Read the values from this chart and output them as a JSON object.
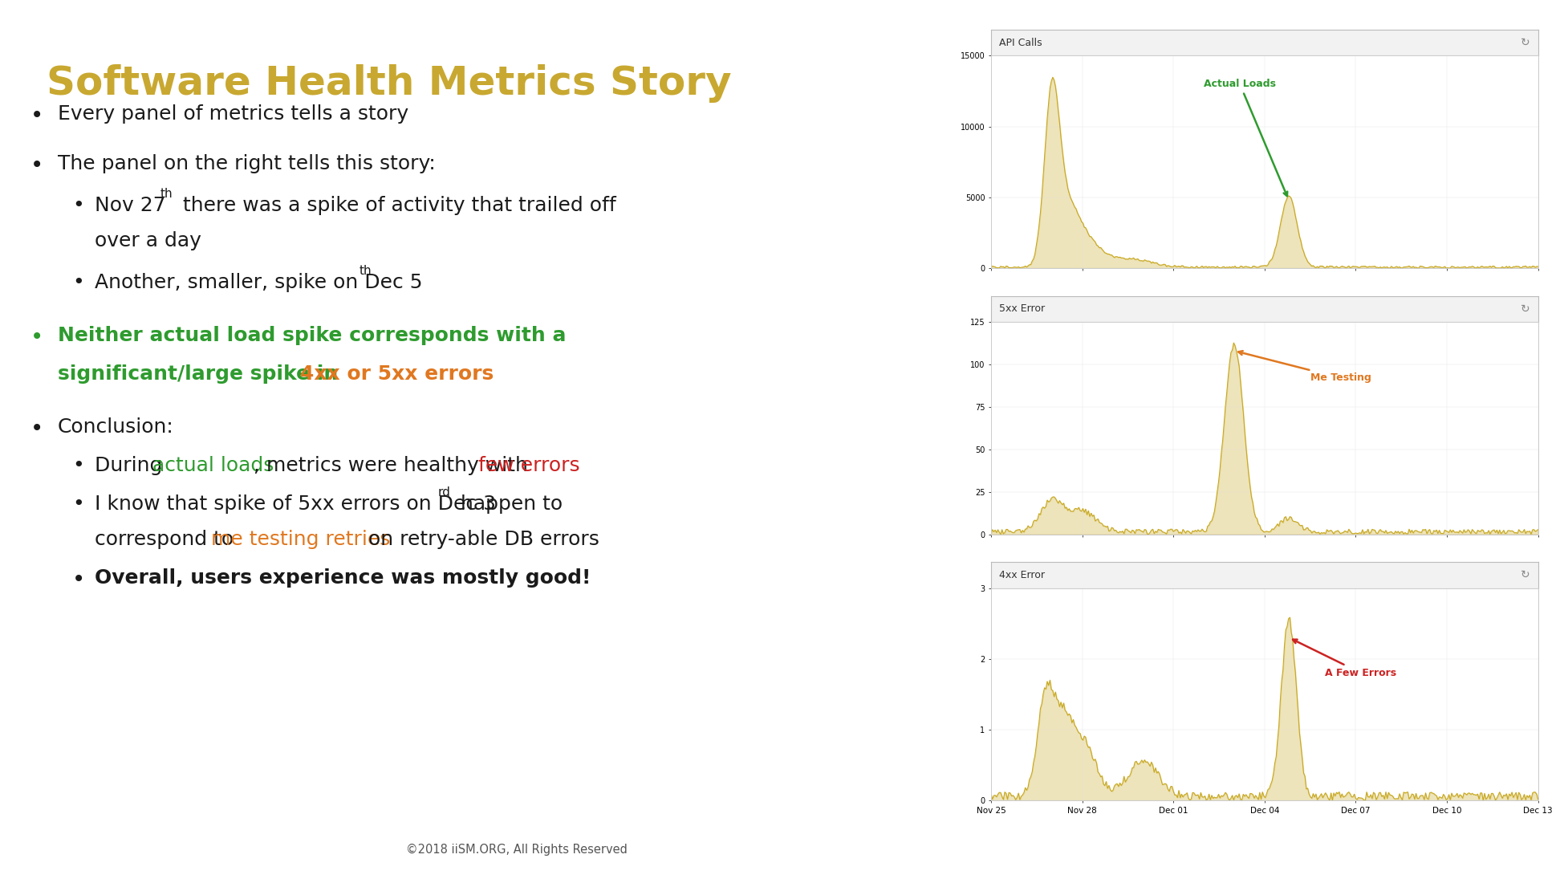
{
  "title": "Software Health Metrics Story",
  "title_color": "#C8A830",
  "title_fontsize": 36,
  "bg_color": "#FFFFFF",
  "footer": "©2018 iiSM.ORG, All Rights Reserved",
  "bullet_fontsize": 18,
  "chart_line_color": "#C8A820",
  "xtick_labels": [
    "Nov 25",
    "Nov 28",
    "Dec 01",
    "Dec 04",
    "Dec 07",
    "Dec 10",
    "Dec 13"
  ],
  "panels": [
    {
      "title": "API Calls",
      "ylim": [
        0,
        15000
      ],
      "yticks": [
        0,
        5000,
        10000,
        15000
      ]
    },
    {
      "title": "5xx Error",
      "ylim": [
        0,
        125
      ],
      "yticks": [
        0,
        25,
        50,
        75,
        100,
        125
      ]
    },
    {
      "title": "4xx Error",
      "ylim": [
        0,
        3
      ],
      "yticks": [
        0,
        1,
        2,
        3
      ]
    }
  ],
  "green": "#2E9B2E",
  "orange": "#E07820",
  "red": "#CC2222",
  "black": "#1A1A1A"
}
